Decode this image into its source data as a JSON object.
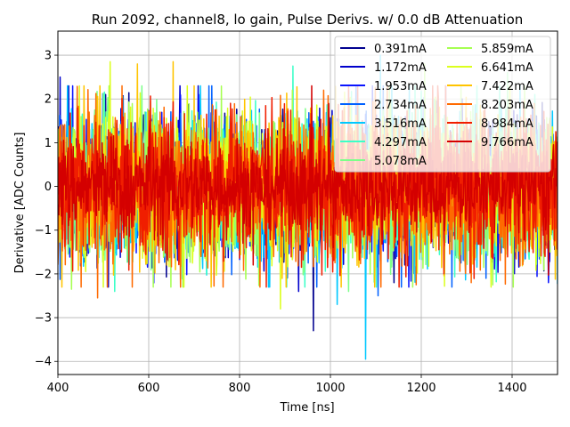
{
  "chart_data": {
    "type": "line",
    "title": "Run 2092, channel8, lo gain, Pulse Derivs. w/ 0.0 dB Attenuation",
    "xlabel": "Time [ns]",
    "ylabel": "Derivative [ADC Counts]",
    "xlim": [
      400,
      1500
    ],
    "ylim": [
      -4.3,
      3.55
    ],
    "xticks": [
      400,
      600,
      800,
      1000,
      1200,
      1400
    ],
    "yticks": [
      -4,
      -3,
      -2,
      -1,
      0,
      1,
      2,
      3
    ],
    "grid": true,
    "legend_position": "top-right",
    "legend_columns": 2,
    "series": [
      {
        "name": "0.391mA",
        "color": "#00008f",
        "noise": 0.75,
        "spikes": [
          [
            962,
            -3.3
          ],
          [
            505,
            2.1
          ],
          [
            1140,
            -2.2
          ]
        ]
      },
      {
        "name": "1.172mA",
        "color": "#0000cc",
        "noise": 0.78,
        "spikes": [
          [
            405,
            2.5
          ],
          [
            930,
            -2.4
          ],
          [
            1290,
            2.0
          ]
        ]
      },
      {
        "name": "1.953mA",
        "color": "#0a14ff",
        "noise": 0.78,
        "spikes": [
          [
            710,
            2.1
          ],
          [
            1480,
            -2.2
          ]
        ]
      },
      {
        "name": "2.734mA",
        "color": "#0061ff",
        "noise": 0.78,
        "spikes": [
          [
            1105,
            -2.5
          ],
          [
            1040,
            2.2
          ]
        ]
      },
      {
        "name": "3.516mA",
        "color": "#00c8ff",
        "noise": 0.8,
        "spikes": [
          [
            1078,
            -3.95
          ],
          [
            1015,
            -2.7
          ],
          [
            1110,
            3.0
          ]
        ]
      },
      {
        "name": "4.297mA",
        "color": "#3cffc8",
        "noise": 0.8,
        "spikes": [
          [
            918,
            2.75
          ],
          [
            525,
            -2.4
          ],
          [
            1450,
            2.1
          ]
        ]
      },
      {
        "name": "5.078mA",
        "color": "#7dff8a",
        "noise": 0.8,
        "spikes": [
          [
            1390,
            2.6
          ],
          [
            1040,
            -2.4
          ]
        ]
      },
      {
        "name": "5.859mA",
        "color": "#a6ff52",
        "noise": 0.82,
        "spikes": [
          [
            1208,
            2.8
          ],
          [
            430,
            -2.35
          ]
        ]
      },
      {
        "name": "6.641mA",
        "color": "#dcff1e",
        "noise": 0.82,
        "spikes": [
          [
            515,
            2.85
          ],
          [
            890,
            -2.8
          ],
          [
            1395,
            2.3
          ]
        ]
      },
      {
        "name": "7.422mA",
        "color": "#ffc400",
        "noise": 0.82,
        "spikes": [
          [
            654,
            2.85
          ],
          [
            575,
            2.8
          ],
          [
            700,
            2.3
          ]
        ]
      },
      {
        "name": "8.203mA",
        "color": "#ff6a00",
        "noise": 0.85,
        "spikes": [
          [
            488,
            -2.55
          ],
          [
            845,
            -2.3
          ],
          [
            1310,
            -2.2
          ]
        ]
      },
      {
        "name": "8.984mA",
        "color": "#f01e00",
        "noise": 0.85,
        "spikes": [
          [
            780,
            1.9
          ],
          [
            1250,
            -2.0
          ]
        ]
      },
      {
        "name": "9.766mA",
        "color": "#d40000",
        "noise": 0.55,
        "spikes": [
          [
            602,
            1.5
          ],
          [
            1006,
            -1.4
          ]
        ]
      }
    ]
  }
}
